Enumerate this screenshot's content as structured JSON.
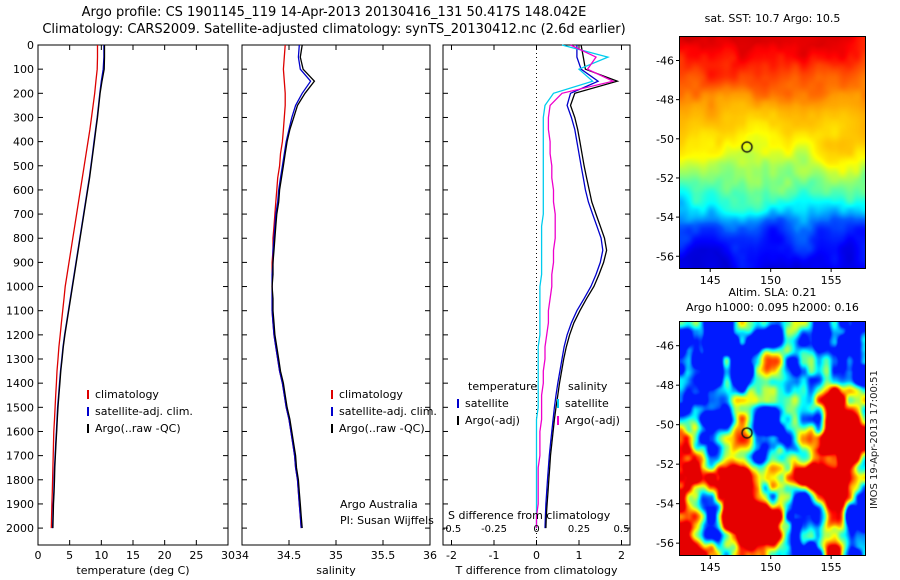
{
  "header": {
    "title_line1": "Argo profile: CS 1901145_119 14-Apr-2013 20130416_131 50.417S 148.042E",
    "title_line2": "Climatology: CARS2009. Satellite-adjusted climatology: synTS_20130412.nc (2.6d earlier)"
  },
  "chart_data": [
    {
      "id": "temperature_profile",
      "type": "line",
      "xlabel": "temperature (deg C)",
      "xlim": [
        0,
        30
      ],
      "xticks": [
        0,
        5,
        10,
        15,
        20,
        25,
        30
      ],
      "ylim": [
        0,
        2070
      ],
      "yticks": [
        0,
        100,
        200,
        300,
        400,
        500,
        600,
        700,
        800,
        900,
        1000,
        1100,
        1200,
        1300,
        1400,
        1500,
        1600,
        1700,
        1800,
        1900,
        2000
      ],
      "show_depth_labels": true,
      "depths": [
        0,
        50,
        100,
        150,
        200,
        250,
        300,
        350,
        400,
        450,
        500,
        550,
        600,
        650,
        700,
        750,
        800,
        850,
        900,
        950,
        1000,
        1050,
        1100,
        1150,
        1200,
        1250,
        1300,
        1350,
        1400,
        1450,
        1500,
        1550,
        1600,
        1650,
        1700,
        1750,
        1800,
        1850,
        1900,
        1950,
        2000
      ],
      "series": [
        {
          "name": "climatology",
          "color": "#dd0000",
          "values": [
            9.4,
            9.4,
            9.35,
            9.15,
            8.95,
            8.7,
            8.45,
            8.2,
            7.9,
            7.6,
            7.3,
            7.0,
            6.7,
            6.4,
            6.1,
            5.8,
            5.5,
            5.2,
            4.9,
            4.6,
            4.3,
            4.1,
            3.9,
            3.7,
            3.5,
            3.3,
            3.15,
            3.0,
            2.9,
            2.8,
            2.7,
            2.6,
            2.5,
            2.45,
            2.4,
            2.35,
            2.3,
            2.25,
            2.2,
            2.15,
            2.1
          ]
        },
        {
          "name": "satellite-adj. clim.",
          "color": "#0000cc",
          "values": [
            10.4,
            10.4,
            10.3,
            10.0,
            9.75,
            9.55,
            9.35,
            9.1,
            8.85,
            8.6,
            8.35,
            8.1,
            7.8,
            7.5,
            7.2,
            6.9,
            6.6,
            6.3,
            6.0,
            5.7,
            5.4,
            5.1,
            4.8,
            4.5,
            4.2,
            3.95,
            3.75,
            3.55,
            3.4,
            3.25,
            3.1,
            3.0,
            2.9,
            2.8,
            2.7,
            2.6,
            2.55,
            2.5,
            2.4,
            2.35,
            2.3
          ]
        },
        {
          "name": "Argo(..raw -QC)",
          "color": "#000000",
          "values": [
            10.5,
            10.5,
            10.45,
            10.1,
            9.8,
            9.6,
            9.4,
            9.15,
            8.9,
            8.65,
            8.4,
            8.15,
            7.85,
            7.55,
            7.25,
            6.95,
            6.65,
            6.35,
            6.05,
            5.75,
            5.45,
            5.15,
            4.85,
            4.55,
            4.25,
            4.0,
            3.8,
            3.6,
            3.45,
            3.3,
            3.15,
            3.05,
            2.95,
            2.85,
            2.75,
            2.65,
            2.6,
            2.55,
            2.45,
            2.4,
            2.35
          ]
        }
      ],
      "legend": {
        "items": [
          {
            "label": "climatology",
            "color": "#dd0000"
          },
          {
            "label": "satellite-adj. clim.",
            "color": "#0000cc"
          },
          {
            "label": "Argo(..raw -QC)",
            "color": "#000000"
          }
        ]
      }
    },
    {
      "id": "salinity_profile",
      "type": "line",
      "xlabel": "salinity",
      "xlim": [
        34,
        36
      ],
      "xticks": [
        34,
        34.5,
        35,
        35.5,
        36
      ],
      "ylim": [
        0,
        2070
      ],
      "yticks": [
        0,
        100,
        200,
        300,
        400,
        500,
        600,
        700,
        800,
        900,
        1000,
        1100,
        1200,
        1300,
        1400,
        1500,
        1600,
        1700,
        1800,
        1900,
        2000
      ],
      "show_depth_labels": false,
      "depths": [
        0,
        50,
        100,
        150,
        200,
        250,
        300,
        350,
        400,
        450,
        500,
        550,
        600,
        650,
        700,
        750,
        800,
        850,
        900,
        950,
        1000,
        1050,
        1100,
        1150,
        1200,
        1250,
        1300,
        1350,
        1400,
        1450,
        1500,
        1550,
        1600,
        1650,
        1700,
        1750,
        1800,
        1850,
        1900,
        1950,
        2000
      ],
      "series": [
        {
          "name": "climatology",
          "color": "#dd0000",
          "values": [
            34.46,
            34.45,
            34.44,
            34.45,
            34.46,
            34.46,
            34.45,
            34.44,
            34.43,
            34.41,
            34.4,
            34.38,
            34.37,
            34.36,
            34.35,
            34.34,
            34.33,
            34.33,
            34.32,
            34.32,
            34.32,
            34.32,
            34.32,
            34.33,
            34.34,
            34.36,
            34.38,
            34.4,
            34.43,
            34.45,
            34.47,
            34.5,
            34.52,
            34.54,
            34.56,
            34.57,
            34.59,
            34.6,
            34.61,
            34.62,
            34.63
          ]
        },
        {
          "name": "satellite-adj. clim.",
          "color": "#0000cc",
          "values": [
            34.61,
            34.6,
            34.62,
            34.73,
            34.64,
            34.57,
            34.53,
            34.5,
            34.47,
            34.45,
            34.43,
            34.41,
            34.39,
            34.38,
            34.36,
            34.35,
            34.34,
            34.33,
            34.33,
            34.32,
            34.32,
            34.32,
            34.32,
            34.33,
            34.34,
            34.36,
            34.38,
            34.4,
            34.43,
            34.45,
            34.47,
            34.5,
            34.52,
            34.54,
            34.56,
            34.57,
            34.59,
            34.6,
            34.61,
            34.62,
            34.63
          ]
        },
        {
          "name": "Argo(..raw -QC)",
          "color": "#000000",
          "values": [
            34.64,
            34.62,
            34.65,
            34.77,
            34.67,
            34.59,
            34.55,
            34.51,
            34.48,
            34.46,
            34.44,
            34.42,
            34.4,
            34.39,
            34.37,
            34.36,
            34.35,
            34.34,
            34.33,
            34.33,
            34.32,
            34.33,
            34.33,
            34.34,
            34.35,
            34.37,
            34.39,
            34.41,
            34.44,
            34.46,
            34.48,
            34.51,
            34.53,
            34.55,
            34.57,
            34.58,
            34.6,
            34.61,
            34.62,
            34.63,
            34.64
          ]
        }
      ],
      "legend": {
        "items": [
          {
            "label": "climatology",
            "color": "#dd0000"
          },
          {
            "label": "satellite-adj. clim.",
            "color": "#0000cc"
          },
          {
            "label": "Argo(..raw -QC)",
            "color": "#000000"
          }
        ]
      },
      "annotations": [
        "Argo Australia",
        "PI: Susan Wijffels"
      ]
    },
    {
      "id": "difference_profile",
      "type": "line",
      "xlabel": "T difference from climatology",
      "footnote": "S difference from climatology",
      "xlim": [
        -2.2,
        2.2
      ],
      "xticks": [
        -2,
        -1,
        0,
        1,
        2
      ],
      "zero_line": true,
      "ylim": [
        0,
        2070
      ],
      "yticks": [
        0,
        100,
        200,
        300,
        400,
        500,
        600,
        700,
        800,
        900,
        1000,
        1100,
        1200,
        1300,
        1400,
        1500,
        1600,
        1700,
        1800,
        1900,
        2000
      ],
      "show_depth_labels": false,
      "s_ticks": {
        "labels": [
          "-0.5",
          "-0.25",
          "0",
          "0.25",
          "0.5"
        ],
        "values": [
          -0.5,
          -0.25,
          0,
          0.25,
          0.5
        ],
        "scale": 4
      },
      "depths": [
        0,
        50,
        100,
        150,
        200,
        250,
        300,
        350,
        400,
        450,
        500,
        550,
        600,
        650,
        700,
        750,
        800,
        850,
        900,
        950,
        1000,
        1050,
        1100,
        1150,
        1200,
        1250,
        1300,
        1350,
        1400,
        1450,
        1500,
        1550,
        1600,
        1650,
        1700,
        1750,
        1800,
        1850,
        1900,
        1950,
        2000
      ],
      "series": [
        {
          "name": "T satellite",
          "color": "#0000cc",
          "scale": 1,
          "values": [
            0.95,
            0.95,
            1.05,
            1.45,
            0.8,
            0.72,
            0.82,
            0.9,
            0.95,
            1.0,
            1.05,
            1.1,
            1.15,
            1.22,
            1.32,
            1.42,
            1.52,
            1.56,
            1.5,
            1.4,
            1.28,
            1.12,
            0.95,
            0.82,
            0.72,
            0.65,
            0.6,
            0.55,
            0.5,
            0.46,
            0.42,
            0.39,
            0.36,
            0.33,
            0.3,
            0.28,
            0.26,
            0.24,
            0.22,
            0.21,
            0.2
          ]
        },
        {
          "name": "T Argo(-adj)",
          "color": "#000000",
          "scale": 1,
          "values": [
            1.05,
            1.1,
            1.15,
            1.9,
            0.9,
            0.8,
            0.9,
            0.97,
            1.02,
            1.07,
            1.12,
            1.18,
            1.24,
            1.3,
            1.4,
            1.5,
            1.6,
            1.65,
            1.58,
            1.47,
            1.35,
            1.18,
            1.02,
            0.88,
            0.78,
            0.7,
            0.64,
            0.59,
            0.54,
            0.5,
            0.46,
            0.42,
            0.39,
            0.36,
            0.33,
            0.31,
            0.29,
            0.27,
            0.25,
            0.23,
            0.22
          ]
        },
        {
          "name": "S satellite",
          "color": "#00ccee",
          "scale": 4,
          "values": [
            0.15,
            0.42,
            0.25,
            0.33,
            0.1,
            0.05,
            0.04,
            0.04,
            0.04,
            0.04,
            0.04,
            0.04,
            0.04,
            0.04,
            0.04,
            0.03,
            0.03,
            0.03,
            0.03,
            0.03,
            0.02,
            0.02,
            0.02,
            0.02,
            0.02,
            0.01,
            0.01,
            0.01,
            0.01,
            0.01,
            0.01,
            0.0,
            0.0,
            0.0,
            0.0,
            0.0,
            0.0,
            0.0,
            0.0,
            0.0,
            0.0
          ]
        },
        {
          "name": "S Argo(-adj)",
          "color": "#ee00cc",
          "scale": 4,
          "values": [
            0.2,
            0.35,
            0.3,
            0.45,
            0.15,
            0.08,
            0.07,
            0.07,
            0.08,
            0.08,
            0.09,
            0.09,
            0.1,
            0.1,
            0.11,
            0.11,
            0.11,
            0.1,
            0.1,
            0.09,
            0.09,
            0.08,
            0.07,
            0.07,
            0.06,
            0.05,
            0.05,
            0.04,
            0.04,
            0.03,
            0.03,
            0.03,
            0.02,
            0.02,
            0.02,
            0.01,
            0.01,
            0.01,
            0.01,
            0.0,
            0.0
          ]
        }
      ],
      "legends": [
        {
          "title": "temperature",
          "items": [
            {
              "label": "satellite",
              "color": "#0000cc"
            },
            {
              "label": "Argo(-adj)",
              "color": "#000000"
            }
          ]
        },
        {
          "title": "salinity",
          "items": [
            {
              "label": "satellite",
              "color": "#00ccee"
            },
            {
              "label": "Argo(-adj)",
              "color": "#ee00cc"
            }
          ]
        }
      ]
    },
    {
      "id": "sst_map",
      "type": "heatmap",
      "title": "sat. SST: 10.7 Argo: 10.5",
      "xlim": [
        142.5,
        157.8
      ],
      "ylim": [
        -56.6,
        -44.8
      ],
      "xticks": [
        145,
        150,
        155
      ],
      "yticks": [
        -46,
        -48,
        -50,
        -52,
        -54,
        -56
      ],
      "marker": {
        "lon": 148.042,
        "lat": -50.417
      },
      "colormap": "jet",
      "value_range": [
        3.5,
        14.3
      ],
      "sst_by_lat": [
        [
          -44.8,
          13.8
        ],
        [
          -46.5,
          12.6
        ],
        [
          -48.0,
          11.6
        ],
        [
          -49.5,
          11.0
        ],
        [
          -50.5,
          10.4
        ],
        [
          -51.5,
          9.3
        ],
        [
          -52.5,
          8.2
        ],
        [
          -53.5,
          6.8
        ],
        [
          -54.5,
          5.4
        ],
        [
          -55.5,
          4.6
        ],
        [
          -56.6,
          3.9
        ]
      ],
      "seed": 11
    },
    {
      "id": "sla_map",
      "type": "heatmap",
      "title_line1": "Altim. SLA: 0.21",
      "title_line2": "Argo h1000: 0.095 h2000: 0.16",
      "watermark": "IMOS 19-Apr-2013 17:00:51",
      "xlim": [
        142.5,
        157.8
      ],
      "ylim": [
        -56.6,
        -44.8
      ],
      "xticks": [
        145,
        150,
        155
      ],
      "yticks": [
        -46,
        -48,
        -50,
        -52,
        -54,
        -56
      ],
      "marker": {
        "lon": 148.042,
        "lat": -50.417
      },
      "colormap": "jet",
      "sla_range": [
        -0.3,
        0.3
      ],
      "seed": 29
    }
  ]
}
